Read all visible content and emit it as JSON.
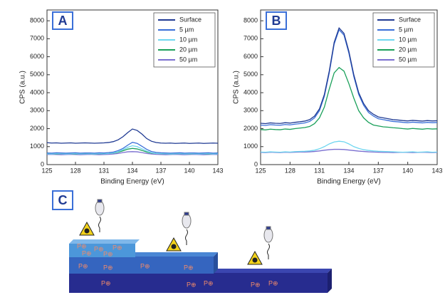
{
  "chart_data": [
    {
      "type": "line",
      "panel_label": "A",
      "xlabel": "Binding Energy (eV)",
      "ylabel": "CPS (a.u.)",
      "xlim": [
        125,
        143
      ],
      "xticks": [
        125,
        128,
        131,
        134,
        137,
        140,
        143
      ],
      "ylim": [
        0,
        8600
      ],
      "yticks": [
        0,
        1000,
        2000,
        3000,
        4000,
        5000,
        6000,
        7000,
        8000
      ],
      "legend": "upper right",
      "x": [
        125,
        125.5,
        126,
        126.5,
        127,
        127.5,
        128,
        128.5,
        129,
        129.5,
        130,
        130.5,
        131,
        131.5,
        132,
        132.5,
        133,
        133.5,
        134,
        134.5,
        135,
        135.5,
        136,
        136.5,
        137,
        137.5,
        138,
        138.5,
        139,
        139.5,
        140,
        140.5,
        141,
        141.5,
        142,
        142.5,
        143
      ],
      "series": [
        {
          "name": "Surface",
          "color": "#1f3a93",
          "values": [
            1220,
            1200,
            1210,
            1190,
            1200,
            1210,
            1190,
            1200,
            1210,
            1200,
            1190,
            1200,
            1210,
            1230,
            1280,
            1380,
            1550,
            1780,
            1980,
            1900,
            1700,
            1450,
            1300,
            1230,
            1200,
            1190,
            1200,
            1180,
            1190,
            1200,
            1180,
            1190,
            1200,
            1180,
            1190,
            1200,
            1190
          ]
        },
        {
          "name": "5 µm",
          "color": "#3a6fd8",
          "values": [
            650,
            640,
            660,
            650,
            640,
            650,
            660,
            640,
            650,
            650,
            640,
            660,
            650,
            670,
            700,
            780,
            900,
            1080,
            1240,
            1180,
            1020,
            850,
            730,
            680,
            660,
            650,
            640,
            650,
            660,
            640,
            650,
            650,
            640,
            650,
            660,
            640,
            650
          ]
        },
        {
          "name": "10 µm",
          "color": "#6fd6f0",
          "values": [
            600,
            590,
            610,
            600,
            590,
            600,
            610,
            590,
            600,
            600,
            590,
            610,
            600,
            620,
            650,
            720,
            830,
            960,
            1050,
            1000,
            880,
            750,
            660,
            620,
            610,
            600,
            590,
            600,
            610,
            590,
            600,
            600,
            590,
            600,
            610,
            590,
            600
          ]
        },
        {
          "name": "20 µm",
          "color": "#1aa05a",
          "values": [
            610,
            600,
            590,
            600,
            610,
            600,
            590,
            600,
            610,
            600,
            590,
            600,
            610,
            620,
            640,
            690,
            770,
            860,
            900,
            870,
            790,
            700,
            640,
            620,
            610,
            600,
            590,
            600,
            610,
            600,
            590,
            600,
            610,
            600,
            590,
            600,
            610
          ]
        },
        {
          "name": "50 µm",
          "color": "#7a6fd0",
          "values": [
            560,
            570,
            560,
            550,
            560,
            570,
            560,
            550,
            560,
            570,
            560,
            550,
            560,
            570,
            590,
            620,
            670,
            710,
            720,
            710,
            670,
            620,
            590,
            570,
            560,
            550,
            560,
            570,
            560,
            550,
            560,
            570,
            560,
            550,
            560,
            570,
            560
          ]
        }
      ]
    },
    {
      "type": "line",
      "panel_label": "B",
      "xlabel": "Binding Energy (eV)",
      "ylabel": "CPS (a.u.)",
      "xlim": [
        125,
        143
      ],
      "xticks": [
        125,
        128,
        131,
        134,
        137,
        140,
        143
      ],
      "ylim": [
        0,
        8600
      ],
      "yticks": [
        0,
        1000,
        2000,
        3000,
        4000,
        5000,
        6000,
        7000,
        8000
      ],
      "legend": "upper right",
      "x": [
        125,
        125.5,
        126,
        126.5,
        127,
        127.5,
        128,
        128.5,
        129,
        129.5,
        130,
        130.5,
        131,
        131.5,
        132,
        132.5,
        133,
        133.5,
        134,
        134.5,
        135,
        135.5,
        136,
        136.5,
        137,
        137.5,
        138,
        138.5,
        139,
        139.5,
        140,
        140.5,
        141,
        141.5,
        142,
        142.5,
        143
      ],
      "series": [
        {
          "name": "Surface",
          "color": "#1f3a93",
          "values": [
            2300,
            2280,
            2320,
            2300,
            2290,
            2330,
            2310,
            2350,
            2380,
            2420,
            2500,
            2700,
            3100,
            3900,
            5200,
            6800,
            7600,
            7300,
            6300,
            5000,
            4000,
            3400,
            3000,
            2800,
            2650,
            2600,
            2550,
            2500,
            2480,
            2450,
            2430,
            2460,
            2440,
            2420,
            2450,
            2430,
            2440
          ]
        },
        {
          "name": "5 µm",
          "color": "#3a6fd8",
          "values": [
            2200,
            2180,
            2220,
            2200,
            2190,
            2230,
            2210,
            2250,
            2280,
            2320,
            2400,
            2600,
            3000,
            3800,
            5100,
            6700,
            7500,
            7200,
            6200,
            4900,
            3900,
            3300,
            2900,
            2700,
            2550,
            2500,
            2450,
            2400,
            2380,
            2350,
            2330,
            2360,
            2340,
            2320,
            2350,
            2330,
            2340
          ]
        },
        {
          "name": "10 µm",
          "color": "#6fd6f0",
          "values": [
            700,
            690,
            710,
            700,
            690,
            710,
            700,
            720,
            730,
            740,
            760,
            800,
            880,
            1000,
            1150,
            1260,
            1300,
            1270,
            1150,
            1000,
            900,
            830,
            790,
            760,
            740,
            730,
            720,
            710,
            700,
            690,
            700,
            710,
            690,
            700,
            710,
            690,
            700
          ]
        },
        {
          "name": "20 µm",
          "color": "#1aa05a",
          "values": [
            1950,
            1930,
            1970,
            1950,
            1940,
            1980,
            1960,
            2000,
            2030,
            2060,
            2120,
            2280,
            2600,
            3200,
            4200,
            5100,
            5400,
            5200,
            4500,
            3700,
            3000,
            2600,
            2350,
            2200,
            2150,
            2100,
            2080,
            2050,
            2030,
            2000,
            1980,
            2010,
            1990,
            1970,
            2000,
            1980,
            1990
          ]
        },
        {
          "name": "50 µm",
          "color": "#7a6fd0",
          "values": [
            680,
            670,
            690,
            680,
            670,
            690,
            680,
            690,
            700,
            700,
            710,
            730,
            760,
            800,
            830,
            850,
            850,
            840,
            810,
            780,
            750,
            730,
            710,
            700,
            690,
            680,
            680,
            670,
            680,
            690,
            680,
            670,
            680,
            690,
            680,
            670,
            680
          ]
        }
      ]
    }
  ],
  "diagram": {
    "panel_label": "C",
    "ion_label": "P⊕"
  }
}
